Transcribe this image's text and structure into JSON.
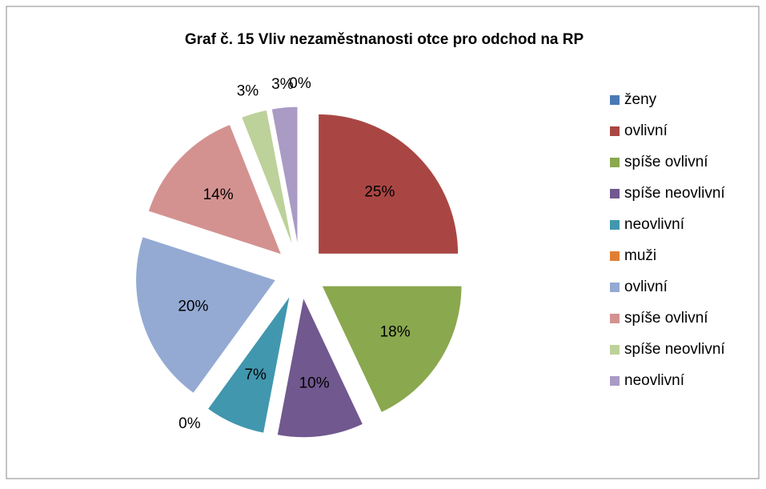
{
  "chart_data": {
    "type": "pie",
    "title": "Graf č. 15 Vliv nezaměstnanosti otce pro odchod na RP",
    "categories": [
      "ženy",
      "ovlivní",
      "spíše ovlivní",
      "spíše neovlivní",
      "neovlivní",
      "muži",
      "ovlivní",
      "spíše ovlivní",
      "spíše neovlivní",
      "neovlivní"
    ],
    "values": [
      0,
      25,
      18,
      10,
      7,
      0,
      20,
      14,
      3,
      3
    ],
    "value_labels": [
      "0%",
      "25%",
      "18%",
      "10%",
      "7%",
      "0%",
      "20%",
      "14%",
      "3%",
      "3%"
    ],
    "colors": [
      "#4a7ab5",
      "#a94643",
      "#8aa84e",
      "#71588f",
      "#4197ae",
      "#e07f34",
      "#94aad3",
      "#d39290",
      "#bdd19a",
      "#a99bc4"
    ],
    "legend": "right"
  }
}
